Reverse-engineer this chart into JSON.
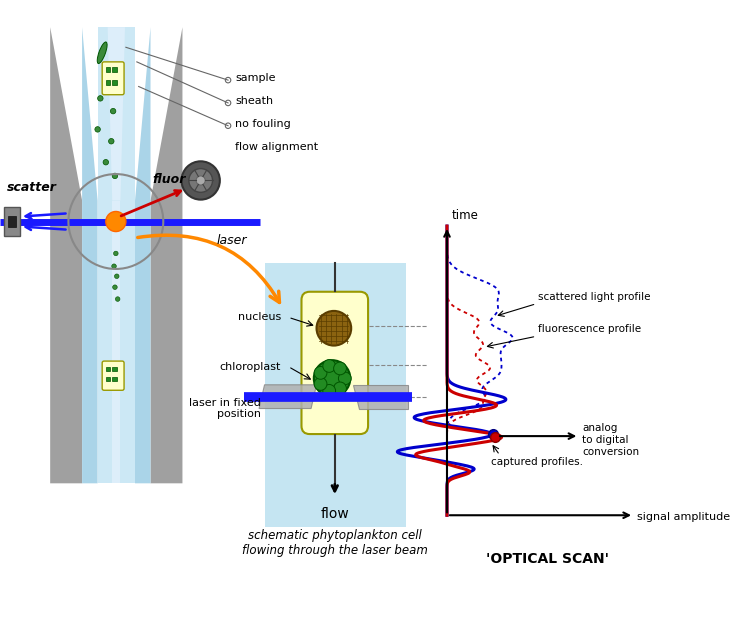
{
  "bg_color": "#ffffff",
  "gray_outer": "#a0a0a0",
  "laser_color": "#1a1aff",
  "scatter_color": "#1a1aff",
  "fluor_color": "#cc0000",
  "orange_arrow_color": "#ff8800",
  "blue_profile_color": "#0000cc",
  "red_profile_color": "#cc0000",
  "labels": {
    "sample": "sample",
    "sheath": "sheath",
    "no_fouling": "no fouling",
    "flow_alignment": "flow alignment",
    "scatter": "scatter",
    "fluor": "fluor",
    "laser": "laser",
    "nucleus": "nucleus",
    "chloroplast": "chloroplast",
    "laser_fixed": "laser in fixed\nposition",
    "flow": "flow",
    "schematic": "schematic phytoplankton cell\nflowing through the laser beam",
    "optical_scan": "'OPTICAL SCAN'",
    "time": "time",
    "signal_amplitude": "signal amplitude",
    "scattered_light": "scattered light profile",
    "fluorescence": "fluorescence profile",
    "analog": "analog\nto digital\nconversion",
    "captured": "captured profiles."
  }
}
